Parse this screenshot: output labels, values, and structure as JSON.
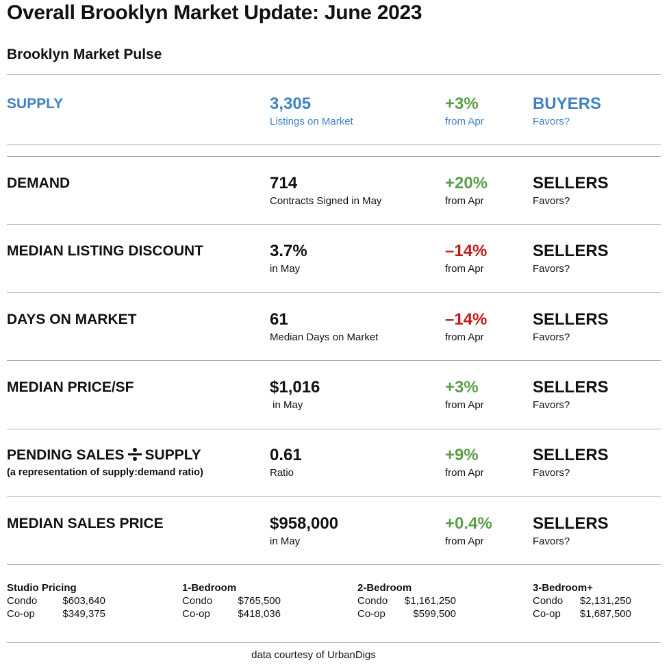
{
  "title": "Overall Brooklyn Market Update: June 2023",
  "subtitle": "Brooklyn Market Pulse",
  "metrics": [
    {
      "label": "SUPPLY",
      "value": "3,305",
      "value_note": "Listings on Market",
      "change": "+3%",
      "change_note": "from Apr",
      "favors": "BUYERS",
      "favors_note": "Favors?"
    },
    {
      "label": "DEMAND",
      "value": "714",
      "value_note": "Contracts Signed  in May",
      "change": "+20%",
      "change_note": "from Apr",
      "favors": "SELLERS",
      "favors_note": "Favors?"
    },
    {
      "label": "MEDIAN LISTING DISCOUNT",
      "value": "3.7%",
      "value_note": "in May",
      "change": "–14%",
      "change_note": "from Apr",
      "favors": "SELLERS",
      "favors_note": "Favors?"
    },
    {
      "label": "DAYS ON MARKET",
      "value": "61",
      "value_note": "Median Days on Market",
      "change": "–14%",
      "change_note": "from Apr",
      "favors": "SELLERS",
      "favors_note": "Favors?"
    },
    {
      "label": "MEDIAN PRICE/SF",
      "value": "$1,016",
      "value_note": " in May",
      "change": "+3%",
      "change_note": "from Apr",
      "favors": "SELLERS",
      "favors_note": "Favors?"
    },
    {
      "label_part1": "PENDING SALES",
      "label_part2": "SUPPLY",
      "sublabel": "(a representation of supply:demand ratio)",
      "value": "0.61",
      "value_note": "Ratio",
      "change": "+9%",
      "change_note": "from Apr",
      "favors": "SELLERS",
      "favors_note": "Favors?"
    },
    {
      "label": "MEDIAN SALES PRICE",
      "value": "$958,000",
      "value_note": "in May",
      "change": "+0.4%",
      "change_note": "from Apr",
      "favors": "SELLERS",
      "favors_note": "Favors?"
    }
  ],
  "icons": {
    "divide": "divide-icon"
  },
  "colors": {
    "supply_blue": "#3f82c4",
    "increase_green": "#5a9e48",
    "decrease_red": "#c01b1b",
    "divider_gray": "#a9a9a9"
  },
  "pricing": [
    {
      "heading": "Studio Pricing",
      "rows": [
        {
          "type": "Condo",
          "price": "$603,640"
        },
        {
          "type": "Co-op",
          "price": "$349,375"
        }
      ]
    },
    {
      "heading": "1-Bedroom",
      "rows": [
        {
          "type": "Condo",
          "price": "$765,500"
        },
        {
          "type": "Co-op",
          "price": "$418,036"
        }
      ]
    },
    {
      "heading": "2-Bedroom",
      "rows": [
        {
          "type": "Condo",
          "price": "$1,161,250"
        },
        {
          "type": "Co-op",
          "price": "$599,500"
        }
      ]
    },
    {
      "heading": "3-Bedroom+",
      "rows": [
        {
          "type": "Condo",
          "price": "$2,131,250"
        },
        {
          "type": "Co-op",
          "price": "$1,687,500"
        }
      ]
    }
  ],
  "footer": "data courtesy of UrbanDigs"
}
